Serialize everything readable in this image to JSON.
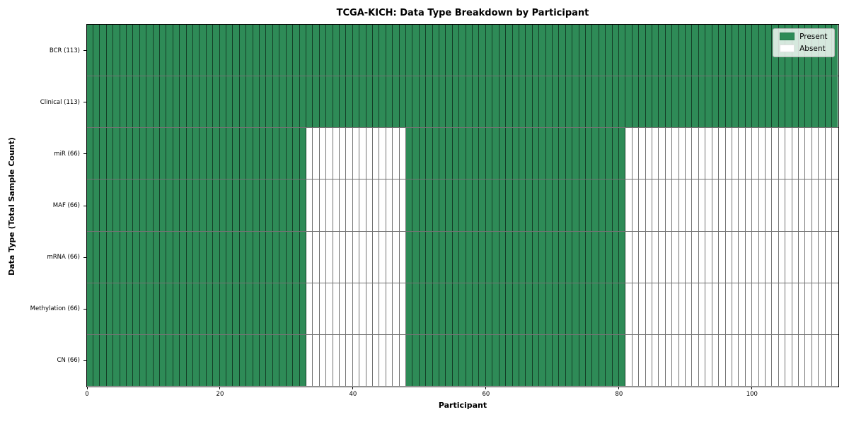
{
  "chart_data": {
    "type": "heatmap",
    "title": "TCGA-KICH: Data Type Breakdown by Participant",
    "xlabel": "Participant",
    "ylabel": "Data Type (Total Sample Count)",
    "n_participants": 113,
    "x_ticks": [
      0,
      20,
      40,
      60,
      80,
      100
    ],
    "legend": [
      {
        "label": "Present",
        "color": "#2e8b57"
      },
      {
        "label": "Absent",
        "color": "#ffffff"
      }
    ],
    "colors": {
      "present": "#2e8b57",
      "absent": "#ffffff",
      "cell_border": "rgba(0,0,0,0.55)",
      "spine": "#000000"
    },
    "layout": {
      "grid": "off",
      "legend_position": "upper right",
      "xlim": [
        0,
        113
      ]
    },
    "rows": [
      {
        "label": "BCR (113)",
        "count": 113,
        "present_ranges": [
          [
            0,
            113
          ]
        ]
      },
      {
        "label": "Clinical (113)",
        "count": 113,
        "present_ranges": [
          [
            0,
            113
          ]
        ]
      },
      {
        "label": "miR (66)",
        "count": 66,
        "present_ranges": [
          [
            0,
            33
          ],
          [
            48,
            81
          ]
        ]
      },
      {
        "label": "MAF (66)",
        "count": 66,
        "present_ranges": [
          [
            0,
            33
          ],
          [
            48,
            81
          ]
        ]
      },
      {
        "label": "mRNA (66)",
        "count": 66,
        "present_ranges": [
          [
            0,
            33
          ],
          [
            48,
            81
          ]
        ]
      },
      {
        "label": "Methylation (66)",
        "count": 66,
        "present_ranges": [
          [
            0,
            33
          ],
          [
            48,
            81
          ]
        ]
      },
      {
        "label": "CN (66)",
        "count": 66,
        "present_ranges": [
          [
            0,
            33
          ],
          [
            48,
            81
          ]
        ]
      }
    ]
  }
}
